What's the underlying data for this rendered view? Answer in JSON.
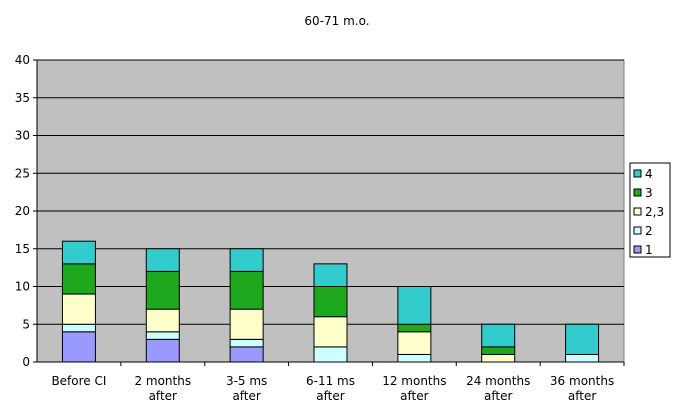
{
  "chart_data": {
    "type": "bar",
    "stacked": true,
    "title": "60-71 m.o.",
    "xlabel": "",
    "ylabel": "",
    "ylim": [
      0,
      40
    ],
    "yticks": [
      0,
      5,
      10,
      15,
      20,
      25,
      30,
      35,
      40
    ],
    "grid": true,
    "legend_position": "right",
    "plot_background": "#C0C0C0",
    "categories": [
      [
        "Before CI"
      ],
      [
        "2 months",
        "after"
      ],
      [
        "3-5 ms",
        "after"
      ],
      [
        "6-11 ms",
        "after"
      ],
      [
        "12 months",
        "after"
      ],
      [
        "24 months",
        "after"
      ],
      [
        "36 months",
        "after"
      ]
    ],
    "series": [
      {
        "name": "1",
        "color": "#9999FF",
        "values": [
          4,
          3,
          2,
          0,
          0,
          0,
          0
        ]
      },
      {
        "name": "2",
        "color": "#CCFFFF",
        "values": [
          1,
          1,
          1,
          2,
          1,
          0,
          1
        ]
      },
      {
        "name": "2,3",
        "color": "#FFFFCC",
        "values": [
          4,
          3,
          4,
          4,
          3,
          1,
          0
        ]
      },
      {
        "name": "3",
        "color": "#1EA81E",
        "values": [
          4,
          5,
          5,
          4,
          1,
          1,
          0
        ]
      },
      {
        "name": "4",
        "color": "#33CCCC",
        "values": [
          3,
          3,
          3,
          3,
          5,
          3,
          4
        ]
      }
    ]
  }
}
